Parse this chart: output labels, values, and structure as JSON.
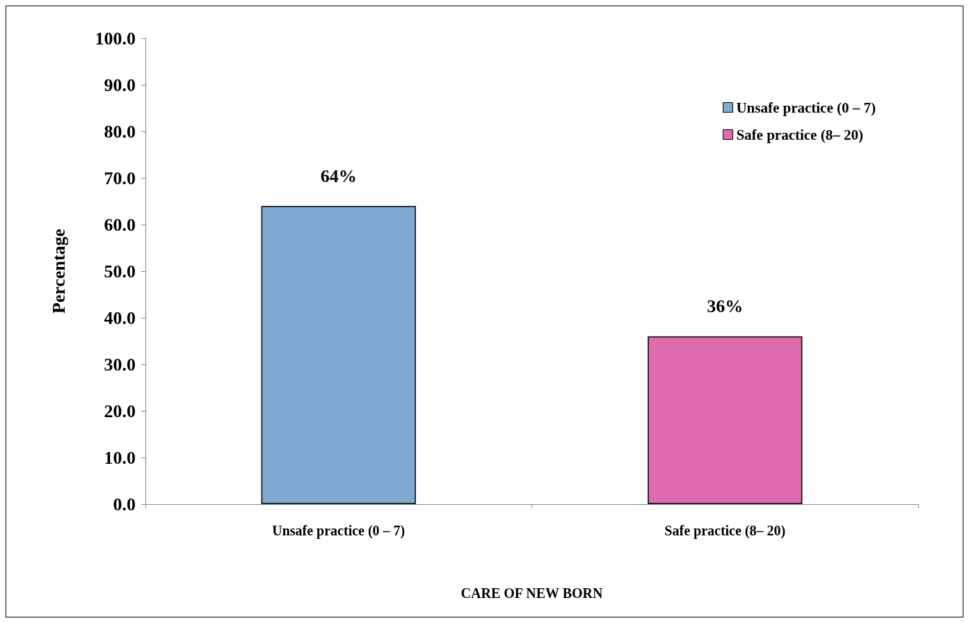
{
  "chart_data": {
    "type": "bar",
    "xlabel": "CARE OF NEW BORN",
    "ylabel": "Percentage",
    "categories": [
      "Unsafe practice (0 – 7)",
      "Safe practice (8– 20)"
    ],
    "series": [
      {
        "name": "Unsafe practice (0 – 7)",
        "color": "#7fa9d1",
        "values": [
          64,
          null
        ],
        "value_labels": [
          "64%",
          null
        ]
      },
      {
        "name": "Safe practice (8– 20)",
        "color": "#e06bb0",
        "values": [
          null,
          36
        ],
        "value_labels": [
          null,
          "36%"
        ]
      }
    ],
    "stacked": true,
    "ylim": [
      0,
      100
    ],
    "yticks": [
      {
        "value": 0,
        "label": "0.0"
      },
      {
        "value": 10,
        "label": "10.0"
      },
      {
        "value": 20,
        "label": "20.0"
      },
      {
        "value": 30,
        "label": "30.0"
      },
      {
        "value": 40,
        "label": "40.0"
      },
      {
        "value": 50,
        "label": "50.0"
      },
      {
        "value": 60,
        "label": "60.0"
      },
      {
        "value": 70,
        "label": "70.0"
      },
      {
        "value": 80,
        "label": "80.0"
      },
      {
        "value": 90,
        "label": "90.0"
      },
      {
        "value": 100,
        "label": "100.0"
      }
    ],
    "grid": false,
    "legend": "top right"
  }
}
